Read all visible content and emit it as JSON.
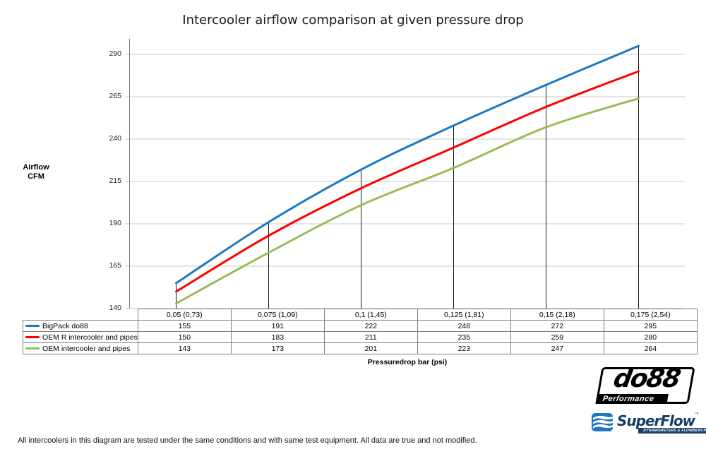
{
  "title": "Intercooler airflow comparison at given pressure drop",
  "y_axis": {
    "title_line1": "Airflow",
    "title_line2": "CFM",
    "ticks": [
      290,
      265,
      240,
      215,
      190,
      165,
      140
    ]
  },
  "x_axis": {
    "label": "Pressuredrop bar (psi)"
  },
  "chart_data": {
    "type": "line",
    "title": "Intercooler airflow comparison at given pressure drop",
    "xlabel": "Pressuredrop bar (psi)",
    "ylabel": "Airflow CFM",
    "ylim": [
      140,
      300
    ],
    "grid": true,
    "legend_position": "table-left",
    "categories": [
      "0,05 (0,73)",
      "0,075 (1,09)",
      "0,1 (1,45)",
      "0,125 (1,81)",
      "0,15 (2,18)",
      "0,175 (2,54)"
    ],
    "series": [
      {
        "name": "BigPack do88",
        "color": "#1b79c4",
        "values": [
          155,
          191,
          222,
          248,
          272,
          295
        ]
      },
      {
        "name": "OEM R intercooler and pipes",
        "color": "#fe0000",
        "values": [
          150,
          183,
          211,
          235,
          259,
          280
        ]
      },
      {
        "name": "OEM intercooler and pipes",
        "color": "#9bbb59",
        "values": [
          143,
          173,
          201,
          223,
          247,
          264
        ]
      }
    ]
  },
  "colors": {
    "gridline": "#c9c9c9",
    "axis": "#7f7f7f",
    "drop_line": "#1a1a1a",
    "table_border": "#7f7f7f"
  },
  "footer": {
    "note": "All intercoolers in this diagram are tested under the same conditions and with same test equipment. All data are true and not modified."
  },
  "logos": {
    "do88": {
      "name": "do88",
      "tagline": "Performance"
    },
    "superflow": {
      "name": "SuperFlow",
      "trademark": "™",
      "tagline": "DYNAMOMETERS & FLOWBENCHES"
    }
  }
}
